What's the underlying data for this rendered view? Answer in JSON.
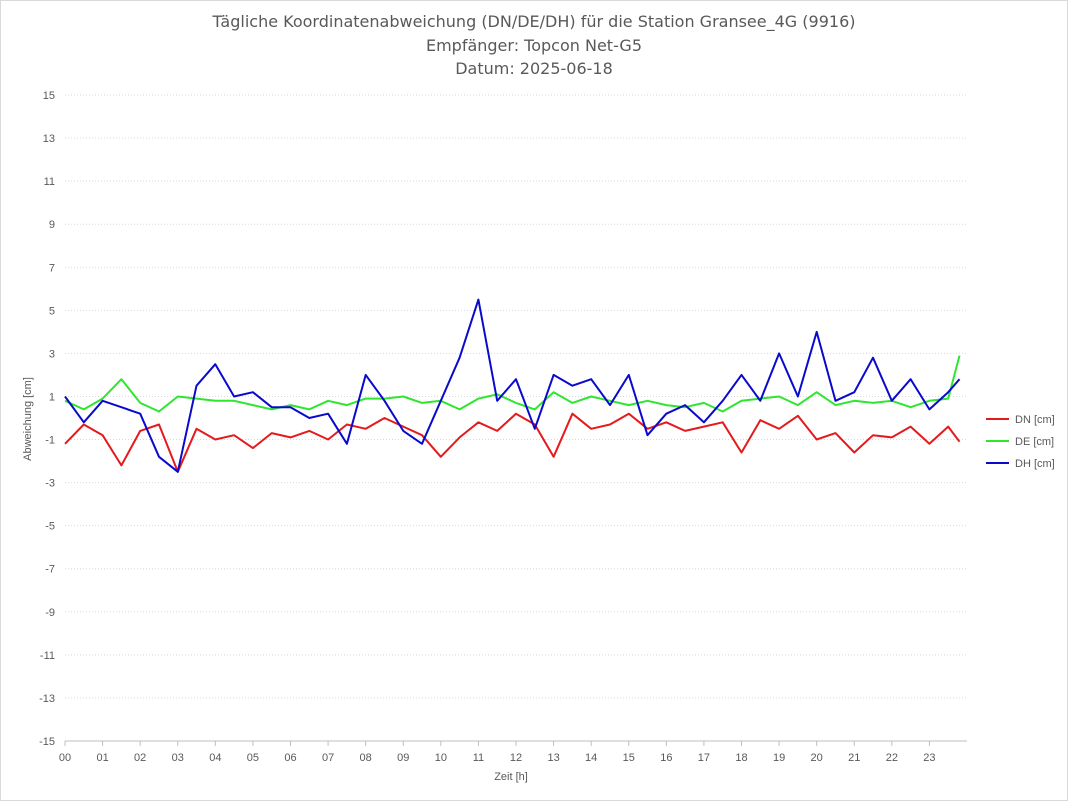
{
  "chart_data": {
    "type": "line",
    "title": "Tägliche Koordinatenabweichung (DN/DE/DH) für die Station Gransee_4G (9916)",
    "subtitle_lines": [
      "Empfänger: Topcon Net-G5",
      "Datum: 2025-06-18"
    ],
    "xlabel": "Zeit [h]",
    "ylabel": "Abweichung [cm]",
    "xlim": [
      0,
      24
    ],
    "ylim": [
      -15,
      15
    ],
    "x_ticks": [
      "00",
      "01",
      "02",
      "03",
      "04",
      "05",
      "06",
      "07",
      "08",
      "09",
      "10",
      "11",
      "12",
      "13",
      "14",
      "15",
      "16",
      "17",
      "18",
      "19",
      "20",
      "21",
      "22",
      "23"
    ],
    "y_ticks": [
      15,
      13,
      11,
      9,
      7,
      5,
      3,
      1,
      -1,
      -3,
      -5,
      -7,
      -9,
      -11,
      -13,
      -15
    ],
    "grid": "horizontal dotted",
    "legend_position": "right",
    "x": [
      0.0,
      0.5,
      1.0,
      1.5,
      2.0,
      2.5,
      3.0,
      3.5,
      4.0,
      4.5,
      5.0,
      5.5,
      6.0,
      6.5,
      7.0,
      7.5,
      8.0,
      8.5,
      9.0,
      9.5,
      10.0,
      10.5,
      11.0,
      11.5,
      12.0,
      12.5,
      13.0,
      13.5,
      14.0,
      14.5,
      15.0,
      15.5,
      16.0,
      16.5,
      17.0,
      17.5,
      18.0,
      18.5,
      19.0,
      19.5,
      20.0,
      20.5,
      21.0,
      21.5,
      22.0,
      22.5,
      23.0,
      23.5,
      23.8
    ],
    "series": [
      {
        "name": "DN [cm]",
        "color": "#e41a1c",
        "values": [
          -1.2,
          -0.3,
          -0.8,
          -2.2,
          -0.6,
          -0.3,
          -2.5,
          -0.5,
          -1.0,
          -0.8,
          -1.4,
          -0.7,
          -0.9,
          -0.6,
          -1.0,
          -0.3,
          -0.5,
          0.0,
          -0.4,
          -0.8,
          -1.8,
          -0.9,
          -0.2,
          -0.6,
          0.2,
          -0.3,
          -1.8,
          0.2,
          -0.5,
          -0.3,
          0.2,
          -0.5,
          -0.2,
          -0.6,
          -0.4,
          -0.2,
          -1.6,
          -0.1,
          -0.5,
          0.1,
          -1.0,
          -0.7,
          -1.6,
          -0.8,
          -0.9,
          -0.4,
          -1.2,
          -0.4,
          -1.1
        ]
      },
      {
        "name": "DE [cm]",
        "color": "#2ee62e",
        "values": [
          0.8,
          0.4,
          0.9,
          1.8,
          0.7,
          0.3,
          1.0,
          0.9,
          0.8,
          0.8,
          0.6,
          0.4,
          0.6,
          0.4,
          0.8,
          0.6,
          0.9,
          0.9,
          1.0,
          0.7,
          0.8,
          0.4,
          0.9,
          1.1,
          0.7,
          0.4,
          1.2,
          0.7,
          1.0,
          0.8,
          0.6,
          0.8,
          0.6,
          0.5,
          0.7,
          0.3,
          0.8,
          0.9,
          1.0,
          0.6,
          1.2,
          0.6,
          0.8,
          0.7,
          0.8,
          0.5,
          0.8,
          0.9,
          2.9
        ]
      },
      {
        "name": "DH [cm]",
        "color": "#0a0acc",
        "values": [
          1.0,
          -0.2,
          0.8,
          0.5,
          0.2,
          -1.8,
          -2.5,
          1.5,
          2.5,
          1.0,
          1.2,
          0.5,
          0.5,
          0.0,
          0.2,
          -1.2,
          2.0,
          0.8,
          -0.6,
          -1.2,
          0.8,
          2.8,
          5.5,
          0.8,
          1.8,
          -0.5,
          2.0,
          1.5,
          1.8,
          0.6,
          2.0,
          -0.8,
          0.2,
          0.6,
          -0.2,
          0.8,
          2.0,
          0.8,
          3.0,
          1.0,
          4.0,
          0.8,
          1.2,
          2.8,
          0.8,
          1.8,
          0.4,
          1.2,
          1.8
        ]
      }
    ]
  }
}
